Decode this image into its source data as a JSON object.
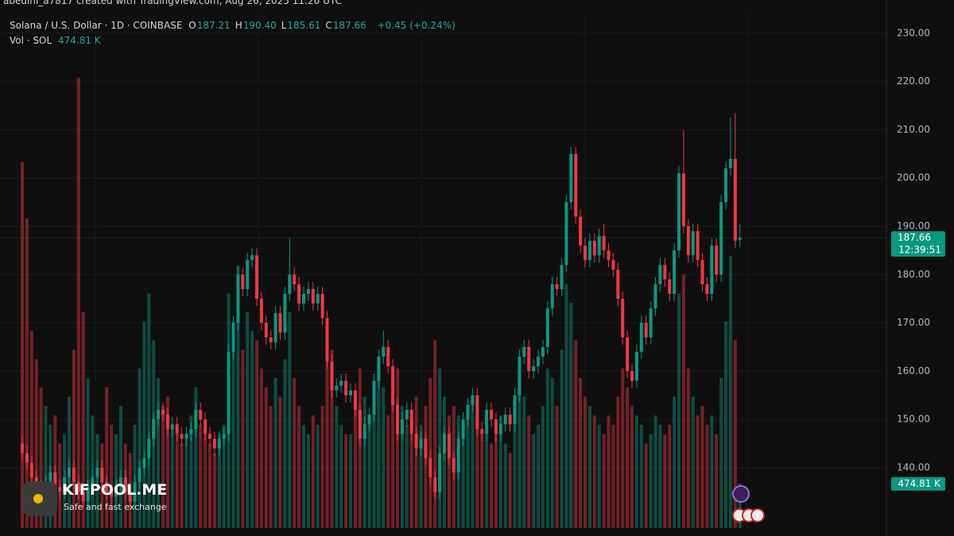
{
  "chart_data": {
    "type": "candlestick",
    "attribution": "abedini_a7817 created with TradingView.com, Aug 26, 2025 11:20 UTC",
    "symbol": "Solana / U.S. Dollar · 1D · COINBASE",
    "header_ohlc": [
      {
        "key": "O",
        "value": 187.21,
        "label": "187.21"
      },
      {
        "key": "H",
        "value": 190.4,
        "label": "190.40"
      },
      {
        "key": "L",
        "value": 185.61,
        "label": "185.61"
      },
      {
        "key": "C",
        "value": 187.66,
        "label": "187.66"
      }
    ],
    "change": "+0.45 (+0.24%)",
    "open": [
      145,
      143,
      141,
      138,
      136,
      134,
      137,
      139,
      136,
      135,
      138,
      140,
      137,
      135,
      133,
      136,
      138,
      140,
      137,
      135,
      134,
      136,
      138,
      135,
      133,
      137,
      140,
      142,
      146,
      150,
      152,
      151,
      148,
      149,
      147,
      146,
      147,
      148,
      152,
      150,
      147,
      146,
      144,
      146,
      147,
      164,
      170,
      180,
      177,
      183,
      184,
      175,
      170,
      167,
      166,
      172,
      168,
      176,
      180,
      178,
      174,
      176,
      177,
      174,
      176,
      171,
      162,
      156,
      157,
      158,
      155,
      156,
      152,
      146,
      149,
      151,
      158,
      163,
      165,
      161,
      153,
      147,
      150,
      152,
      147,
      144,
      146,
      142,
      138,
      135,
      143,
      147,
      142,
      139,
      146,
      150,
      153,
      155,
      148,
      147,
      152,
      150,
      147,
      149,
      151,
      149,
      155,
      163,
      165,
      160,
      161,
      163,
      165,
      173,
      178,
      177,
      182,
      195,
      205,
      192,
      186,
      183,
      187,
      184,
      188,
      185,
      183,
      181,
      175,
      167,
      160,
      158,
      164,
      170,
      167,
      173,
      178,
      182,
      179,
      176,
      185,
      201,
      190,
      184,
      189,
      183,
      178,
      176,
      186,
      180,
      195,
      202,
      204,
      187.21
    ],
    "high": [
      146.5,
      144.5,
      142.5,
      139.5,
      137.5,
      138.5,
      140.5,
      140.5,
      137.5,
      139.5,
      141.5,
      141.5,
      138.5,
      136.5,
      137.5,
      139.5,
      141.5,
      141.5,
      138.5,
      136.5,
      137.5,
      139.5,
      139.5,
      136.5,
      138.5,
      141.5,
      143.5,
      147.5,
      151.5,
      153.5,
      153.5,
      152.5,
      150.5,
      150.5,
      148.5,
      148.5,
      149.5,
      153.5,
      153.5,
      151.5,
      148.5,
      147.5,
      147.5,
      148.5,
      165.5,
      171.5,
      181.5,
      181.5,
      184.5,
      185.5,
      185.5,
      176.5,
      171.5,
      168.5,
      173.5,
      173.5,
      177.5,
      187.5,
      181.5,
      179.5,
      177.5,
      178.5,
      178.5,
      177.5,
      177.5,
      172.5,
      163.5,
      158.5,
      159.5,
      159.5,
      157.5,
      157.5,
      153.5,
      150.5,
      152.5,
      159.5,
      164.5,
      168.5,
      166.5,
      162.5,
      154.5,
      151.5,
      153.5,
      153.5,
      148.5,
      147.5,
      147.5,
      143.5,
      139.5,
      144.5,
      148.5,
      148.5,
      143.5,
      147.5,
      151.5,
      154.5,
      156.5,
      156.5,
      149.5,
      153.5,
      153.5,
      151.5,
      150.5,
      152.5,
      152.5,
      156.5,
      164.5,
      166.5,
      166.5,
      162.5,
      164.5,
      166.5,
      174.5,
      179.5,
      179.5,
      183.5,
      196.5,
      206.5,
      206.5,
      193.5,
      187.5,
      188.5,
      188.5,
      189.5,
      190.5,
      186.5,
      184.5,
      182.5,
      176.5,
      168.5,
      161.5,
      165.5,
      171.5,
      171.5,
      174.5,
      179.5,
      183.5,
      183.5,
      180.5,
      186.5,
      202.5,
      210,
      191.5,
      190.5,
      190.5,
      184.5,
      179.5,
      187.5,
      187.5,
      196.5,
      203.5,
      212.5,
      213.5,
      190.4
    ],
    "low": [
      141.5,
      139.5,
      136.5,
      134.5,
      132.5,
      132.5,
      135.5,
      134.5,
      133.5,
      133.5,
      136.5,
      135.5,
      133.5,
      131.5,
      131.5,
      134.5,
      136.5,
      135.5,
      133.5,
      132.5,
      132.5,
      134.5,
      133.5,
      131.5,
      131.5,
      135.5,
      138.5,
      140.5,
      144.5,
      148.5,
      149.5,
      146.5,
      146.5,
      145.5,
      144.5,
      144.5,
      145.5,
      146.5,
      148.5,
      145.5,
      144.5,
      142.5,
      142.5,
      144.5,
      145.5,
      162.5,
      168.5,
      175.5,
      175.5,
      181.5,
      173.5,
      168.5,
      165.5,
      164.5,
      164.5,
      166.5,
      166.5,
      174.5,
      176.5,
      172.5,
      172.5,
      174.5,
      172.5,
      172.5,
      169.5,
      160.5,
      154.5,
      154.5,
      155.5,
      153.5,
      153.5,
      150.5,
      144.5,
      144.5,
      147.5,
      149.5,
      156.5,
      161.5,
      159.5,
      151.5,
      145.5,
      145.5,
      148.5,
      145.5,
      142.5,
      142.5,
      140.5,
      136.5,
      133.5,
      133.5,
      141.5,
      140.5,
      137.5,
      137.5,
      144.5,
      148.5,
      151.5,
      146.5,
      145.5,
      145.5,
      148.5,
      145.5,
      145.5,
      147.5,
      147.5,
      147.5,
      153.5,
      161.5,
      158.5,
      158.5,
      159.5,
      161.5,
      163.5,
      171.5,
      175.5,
      175.5,
      180.5,
      193.5,
      190.5,
      184.5,
      181.5,
      181.5,
      182.5,
      182.5,
      183.5,
      181.5,
      179.5,
      173.5,
      165.5,
      158.5,
      156.5,
      156.5,
      162.5,
      165.5,
      165.5,
      171.5,
      176.5,
      177.5,
      174.5,
      174.5,
      183.5,
      188.5,
      182.5,
      182.5,
      181.5,
      176.5,
      174.5,
      174.5,
      178.5,
      178.5,
      193.5,
      200.5,
      185.5,
      185.61
    ],
    "close": [
      143,
      141,
      138,
      136,
      134,
      137,
      139,
      136,
      135,
      138,
      140,
      137,
      135,
      133,
      136,
      138,
      140,
      137,
      135,
      134,
      136,
      138,
      135,
      133,
      137,
      140,
      142,
      146,
      150,
      152,
      151,
      148,
      149,
      147,
      146,
      147,
      148,
      152,
      150,
      147,
      146,
      144,
      146,
      147,
      164,
      170,
      180,
      177,
      183,
      184,
      175,
      170,
      167,
      166,
      172,
      168,
      176,
      180,
      178,
      174,
      176,
      177,
      174,
      176,
      171,
      162,
      156,
      157,
      158,
      155,
      156,
      152,
      146,
      149,
      151,
      158,
      163,
      165,
      161,
      153,
      147,
      150,
      152,
      147,
      144,
      146,
      142,
      138,
      135,
      143,
      147,
      142,
      139,
      146,
      150,
      153,
      155,
      148,
      147,
      152,
      150,
      147,
      149,
      151,
      149,
      155,
      163,
      165,
      160,
      161,
      163,
      165,
      173,
      178,
      177,
      182,
      195,
      205,
      192,
      186,
      183,
      187,
      184,
      188,
      185,
      183,
      181,
      175,
      167,
      160,
      158,
      164,
      170,
      167,
      173,
      178,
      182,
      179,
      176,
      185,
      201,
      190,
      184,
      189,
      183,
      178,
      176,
      186,
      180,
      195,
      202,
      204,
      187,
      187.66
    ],
    "volume": {
      "name": "Vol · SOL",
      "values": [
        3900,
        3300,
        2100,
        1800,
        1500,
        1300,
        1100,
        1200,
        900,
        1000,
        1400,
        1900,
        4800,
        2300,
        1600,
        1200,
        1000,
        900,
        1500,
        1100,
        1000,
        1300,
        900,
        800,
        1100,
        1700,
        2200,
        2500,
        2000,
        1600,
        1300,
        1400,
        1100,
        1000,
        900,
        1000,
        1200,
        1500,
        1100,
        1000,
        900,
        800,
        1000,
        1100,
        2500,
        2200,
        2800,
        1900,
        2300,
        2100,
        2000,
        1700,
        1500,
        1300,
        1600,
        1400,
        1800,
        2300,
        1600,
        1300,
        1100,
        1000,
        1200,
        1100,
        1300,
        2000,
        1900,
        1300,
        1100,
        1000,
        1000,
        1300,
        1700,
        1400,
        1200,
        1300,
        1700,
        1500,
        1200,
        1400,
        1700,
        1300,
        1100,
        1200,
        1400,
        1100,
        1300,
        1600,
        2000,
        1700,
        1400,
        1200,
        1300,
        1200,
        1100,
        1300,
        1400,
        1200,
        1000,
        1100,
        900,
        1000,
        1200,
        900,
        800,
        1100,
        1600,
        1400,
        1200,
        1000,
        1100,
        1300,
        1700,
        1600,
        1300,
        1900,
        2600,
        2400,
        2000,
        1600,
        1400,
        1300,
        1200,
        1100,
        1000,
        1200,
        1100,
        1400,
        1700,
        1500,
        1300,
        1200,
        1100,
        900,
        1000,
        1200,
        1100,
        1000,
        1100,
        1400,
        2500,
        2700,
        1700,
        1400,
        1200,
        1300,
        1100,
        1200,
        1000,
        1600,
        2200,
        2900,
        2000,
        474.81
      ],
      "last_label": "474.81 K",
      "lim": [
        0,
        5500
      ]
    },
    "ylim": [
      127.5,
      234.4
    ],
    "yticks": [
      {
        "value": 140,
        "label": "140.00"
      },
      {
        "value": 150,
        "label": "150.00"
      },
      {
        "value": 160,
        "label": "160.00"
      },
      {
        "value": 170,
        "label": "170.00"
      },
      {
        "value": 180,
        "label": "180.00"
      },
      {
        "value": 190,
        "label": "190.00"
      },
      {
        "value": 200,
        "label": "200.00"
      },
      {
        "value": 210,
        "label": "210.00"
      },
      {
        "value": 220,
        "label": "220.00"
      },
      {
        "value": 230,
        "label": "230.00"
      }
    ],
    "last_price": {
      "value": 187.66,
      "label": "187.66"
    },
    "countdown": "12:39:51",
    "grid": true,
    "up_color": "#089981",
    "down_color": "#f23645",
    "watermark": {
      "name": "KIFPOOL.ME",
      "tagline": "Safe and fast exchange"
    }
  }
}
